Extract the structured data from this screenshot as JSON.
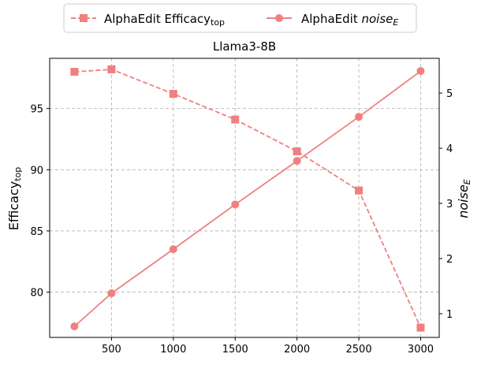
{
  "chart_data": {
    "type": "line",
    "title": "Llama3-8B",
    "x": [
      200,
      500,
      1000,
      1500,
      2000,
      2500,
      3000
    ],
    "x_ticks": [
      500,
      1000,
      1500,
      2000,
      2500,
      3000
    ],
    "xlim": [
      0,
      3150
    ],
    "y_left": {
      "label_main": "Efficacy",
      "label_sub": "top",
      "ticks": [
        80,
        85,
        90,
        95
      ],
      "ylim": [
        76.3,
        99.1
      ]
    },
    "y_right": {
      "label": "noise",
      "label_sub": "E",
      "ticks": [
        1,
        2,
        3,
        4,
        5
      ],
      "ylim": [
        0.57,
        5.63
      ]
    },
    "grid": true,
    "legend_position": "top-center",
    "series": [
      {
        "name_main": "AlphaEdit Efficacy",
        "name_sub": "top",
        "axis": "left",
        "style": "dashed",
        "marker": "square",
        "color": "#f08080",
        "values": [
          98.0,
          98.2,
          96.2,
          94.1,
          91.5,
          88.3,
          77.1
        ]
      },
      {
        "name_main": "AlphaEdit ",
        "name_italic": "noise",
        "name_sub": "E",
        "axis": "right",
        "style": "solid",
        "marker": "circle",
        "color": "#f08080",
        "values": [
          0.77,
          1.37,
          2.17,
          2.98,
          3.77,
          4.57,
          5.4
        ]
      }
    ]
  }
}
